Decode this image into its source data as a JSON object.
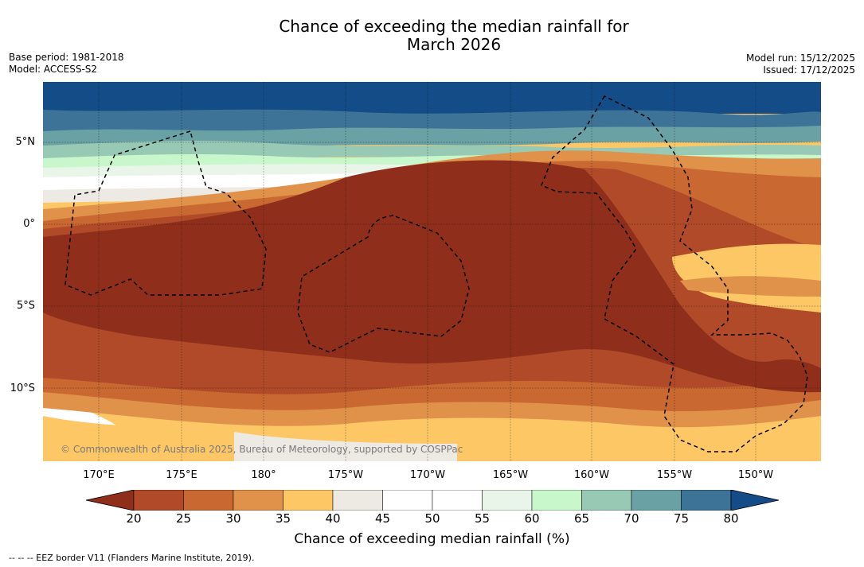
{
  "title_line1": "Chance of exceeding the median rainfall for",
  "title_line2": "March 2026",
  "base_period": "Base period: 1981-2018",
  "model": "Model: ACCESS-S2",
  "model_run": "Model run: 15/12/2025",
  "issued": "Issued: 17/12/2025",
  "latitude_labels": [
    "5°N",
    "0°",
    "5°S",
    "10°S"
  ],
  "longitude_labels": [
    "170°E",
    "175°E",
    "180°",
    "175°W",
    "170°W",
    "165°W",
    "160°W",
    "155°W",
    "150°W"
  ],
  "credit": "© Commonwealth of Australia 2025, Bureau of Meteorology, supported by COSPPac",
  "colorbar": {
    "ticks": [
      "20",
      "25",
      "30",
      "35",
      "40",
      "45",
      "50",
      "55",
      "60",
      "65",
      "70",
      "75",
      "80"
    ],
    "colors": [
      "#8f2f1b",
      "#b04a29",
      "#c96831",
      "#e0924a",
      "#fdc766",
      "#ede9e3",
      "#ffffff",
      "#ffffff",
      "#e9f5e8",
      "#c8f7cb",
      "#98c9b4",
      "#6aa1a5",
      "#3d7396",
      "#134c86"
    ],
    "title": "Chance of exceeding median rainfall (%)"
  },
  "legend_text": "-- -- -- EEZ border V11 (Flanders Marine Institute, 2019)."
}
